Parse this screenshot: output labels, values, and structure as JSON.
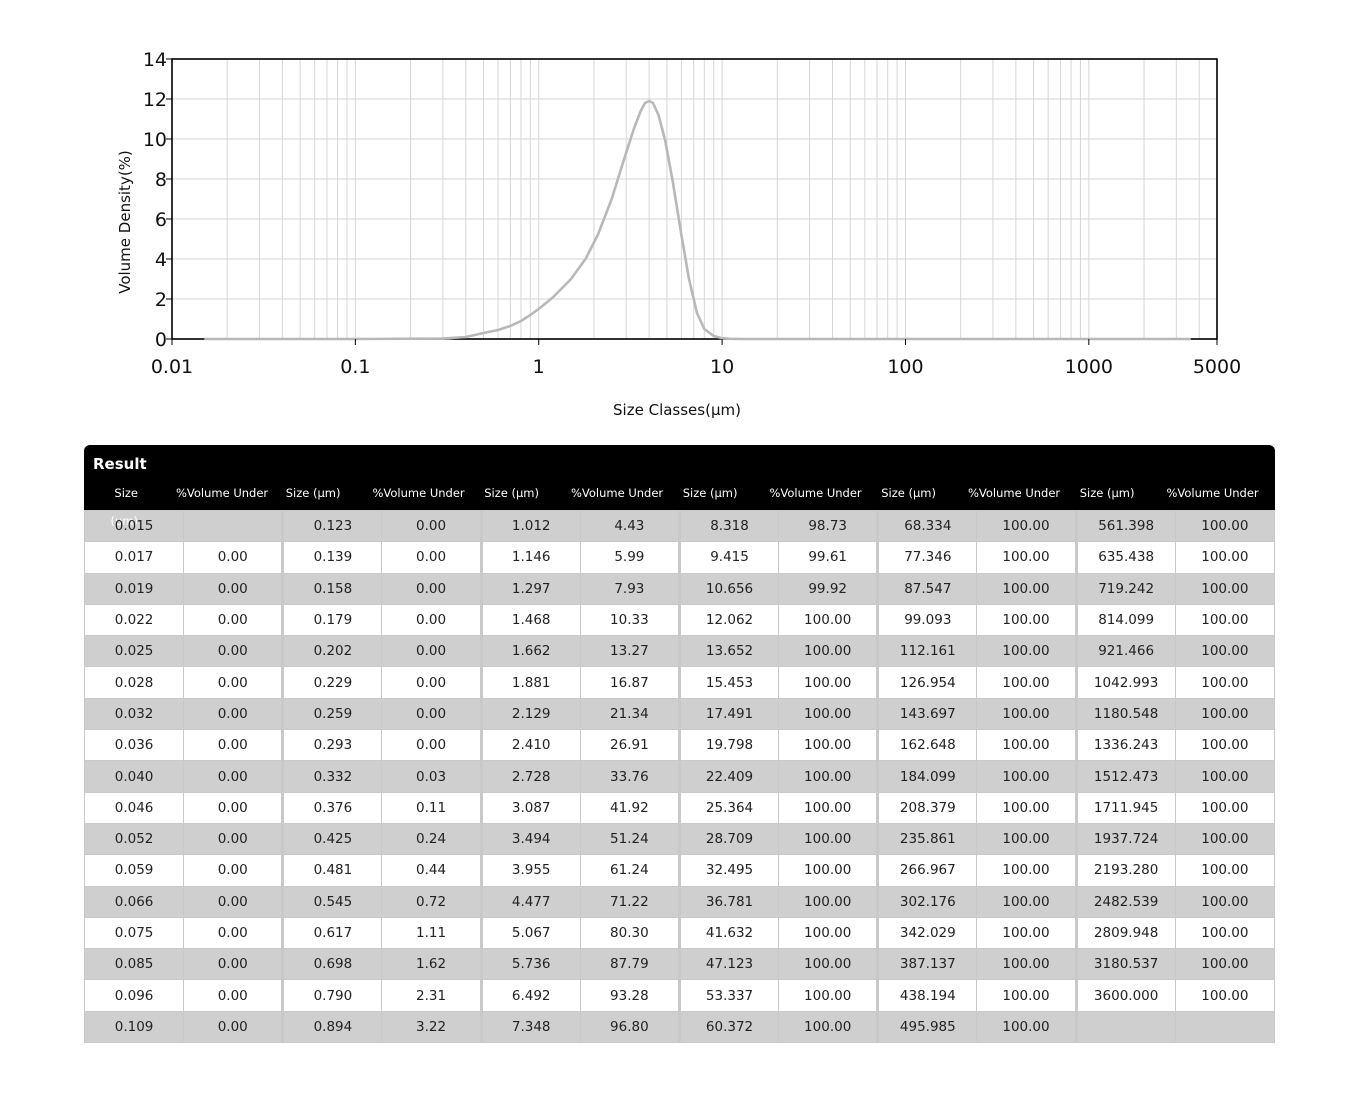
{
  "chart_data": {
    "type": "line",
    "title": "",
    "xlabel": "Size Classes(μm)",
    "ylabel": "Volume Density(%)",
    "xscale": "log",
    "xlim": [
      0.01,
      5000
    ],
    "ylim": [
      0,
      14
    ],
    "x_ticks": [
      "0.01",
      "0.1",
      "1",
      "10",
      "100",
      "1000",
      "5000"
    ],
    "y_ticks": [
      "0",
      "2",
      "4",
      "6",
      "8",
      "10",
      "12",
      "14"
    ],
    "grid": true,
    "line_color": "#b8b8b8",
    "series": [
      {
        "x": [
          0.015,
          0.1,
          0.3,
          0.4,
          0.5,
          0.6,
          0.7,
          0.8,
          0.9,
          1.0,
          1.2,
          1.5,
          1.8,
          2.1,
          2.5,
          2.9,
          3.3,
          3.6,
          3.8,
          4.0,
          4.2,
          4.5,
          4.9,
          5.4,
          6.0,
          6.6,
          7.3,
          8.0,
          9.0,
          10.0,
          11.0,
          13.0,
          20.0,
          100.0,
          1000.0,
          3600.0
        ],
        "y": [
          0,
          0,
          0.02,
          0.1,
          0.3,
          0.45,
          0.65,
          0.9,
          1.2,
          1.5,
          2.1,
          3.0,
          4.0,
          5.2,
          7.0,
          8.9,
          10.5,
          11.4,
          11.8,
          11.9,
          11.8,
          11.2,
          9.9,
          7.8,
          5.2,
          3.0,
          1.3,
          0.5,
          0.15,
          0.04,
          0.01,
          0,
          0,
          0,
          0,
          0
        ]
      }
    ]
  },
  "table": {
    "title": "Result",
    "size_header": "Size (μm)",
    "volume_header": "%Volume Under",
    "columns": [
      [
        [
          "0.015",
          ""
        ],
        [
          "0.017",
          "0.00"
        ],
        [
          "0.019",
          "0.00"
        ],
        [
          "0.022",
          "0.00"
        ],
        [
          "0.025",
          "0.00"
        ],
        [
          "0.028",
          "0.00"
        ],
        [
          "0.032",
          "0.00"
        ],
        [
          "0.036",
          "0.00"
        ],
        [
          "0.040",
          "0.00"
        ],
        [
          "0.046",
          "0.00"
        ],
        [
          "0.052",
          "0.00"
        ],
        [
          "0.059",
          "0.00"
        ],
        [
          "0.066",
          "0.00"
        ],
        [
          "0.075",
          "0.00"
        ],
        [
          "0.085",
          "0.00"
        ],
        [
          "0.096",
          "0.00"
        ],
        [
          "0.109",
          "0.00"
        ]
      ],
      [
        [
          "0.123",
          "0.00"
        ],
        [
          "0.139",
          "0.00"
        ],
        [
          "0.158",
          "0.00"
        ],
        [
          "0.179",
          "0.00"
        ],
        [
          "0.202",
          "0.00"
        ],
        [
          "0.229",
          "0.00"
        ],
        [
          "0.259",
          "0.00"
        ],
        [
          "0.293",
          "0.00"
        ],
        [
          "0.332",
          "0.03"
        ],
        [
          "0.376",
          "0.11"
        ],
        [
          "0.425",
          "0.24"
        ],
        [
          "0.481",
          "0.44"
        ],
        [
          "0.545",
          "0.72"
        ],
        [
          "0.617",
          "1.11"
        ],
        [
          "0.698",
          "1.62"
        ],
        [
          "0.790",
          "2.31"
        ],
        [
          "0.894",
          "3.22"
        ]
      ],
      [
        [
          "1.012",
          "4.43"
        ],
        [
          "1.146",
          "5.99"
        ],
        [
          "1.297",
          "7.93"
        ],
        [
          "1.468",
          "10.33"
        ],
        [
          "1.662",
          "13.27"
        ],
        [
          "1.881",
          "16.87"
        ],
        [
          "2.129",
          "21.34"
        ],
        [
          "2.410",
          "26.91"
        ],
        [
          "2.728",
          "33.76"
        ],
        [
          "3.087",
          "41.92"
        ],
        [
          "3.494",
          "51.24"
        ],
        [
          "3.955",
          "61.24"
        ],
        [
          "4.477",
          "71.22"
        ],
        [
          "5.067",
          "80.30"
        ],
        [
          "5.736",
          "87.79"
        ],
        [
          "6.492",
          "93.28"
        ],
        [
          "7.348",
          "96.80"
        ]
      ],
      [
        [
          "8.318",
          "98.73"
        ],
        [
          "9.415",
          "99.61"
        ],
        [
          "10.656",
          "99.92"
        ],
        [
          "12.062",
          "100.00"
        ],
        [
          "13.652",
          "100.00"
        ],
        [
          "15.453",
          "100.00"
        ],
        [
          "17.491",
          "100.00"
        ],
        [
          "19.798",
          "100.00"
        ],
        [
          "22.409",
          "100.00"
        ],
        [
          "25.364",
          "100.00"
        ],
        [
          "28.709",
          "100.00"
        ],
        [
          "32.495",
          "100.00"
        ],
        [
          "36.781",
          "100.00"
        ],
        [
          "41.632",
          "100.00"
        ],
        [
          "47.123",
          "100.00"
        ],
        [
          "53.337",
          "100.00"
        ],
        [
          "60.372",
          "100.00"
        ]
      ],
      [
        [
          "68.334",
          "100.00"
        ],
        [
          "77.346",
          "100.00"
        ],
        [
          "87.547",
          "100.00"
        ],
        [
          "99.093",
          "100.00"
        ],
        [
          "112.161",
          "100.00"
        ],
        [
          "126.954",
          "100.00"
        ],
        [
          "143.697",
          "100.00"
        ],
        [
          "162.648",
          "100.00"
        ],
        [
          "184.099",
          "100.00"
        ],
        [
          "208.379",
          "100.00"
        ],
        [
          "235.861",
          "100.00"
        ],
        [
          "266.967",
          "100.00"
        ],
        [
          "302.176",
          "100.00"
        ],
        [
          "342.029",
          "100.00"
        ],
        [
          "387.137",
          "100.00"
        ],
        [
          "438.194",
          "100.00"
        ],
        [
          "495.985",
          "100.00"
        ]
      ],
      [
        [
          "561.398",
          "100.00"
        ],
        [
          "635.438",
          "100.00"
        ],
        [
          "719.242",
          "100.00"
        ],
        [
          "814.099",
          "100.00"
        ],
        [
          "921.466",
          "100.00"
        ],
        [
          "1042.993",
          "100.00"
        ],
        [
          "1180.548",
          "100.00"
        ],
        [
          "1336.243",
          "100.00"
        ],
        [
          "1512.473",
          "100.00"
        ],
        [
          "1711.945",
          "100.00"
        ],
        [
          "1937.724",
          "100.00"
        ],
        [
          "2193.280",
          "100.00"
        ],
        [
          "2482.539",
          "100.00"
        ],
        [
          "2809.948",
          "100.00"
        ],
        [
          "3180.537",
          "100.00"
        ],
        [
          "3600.000",
          "100.00"
        ],
        [
          "",
          ""
        ]
      ]
    ]
  }
}
